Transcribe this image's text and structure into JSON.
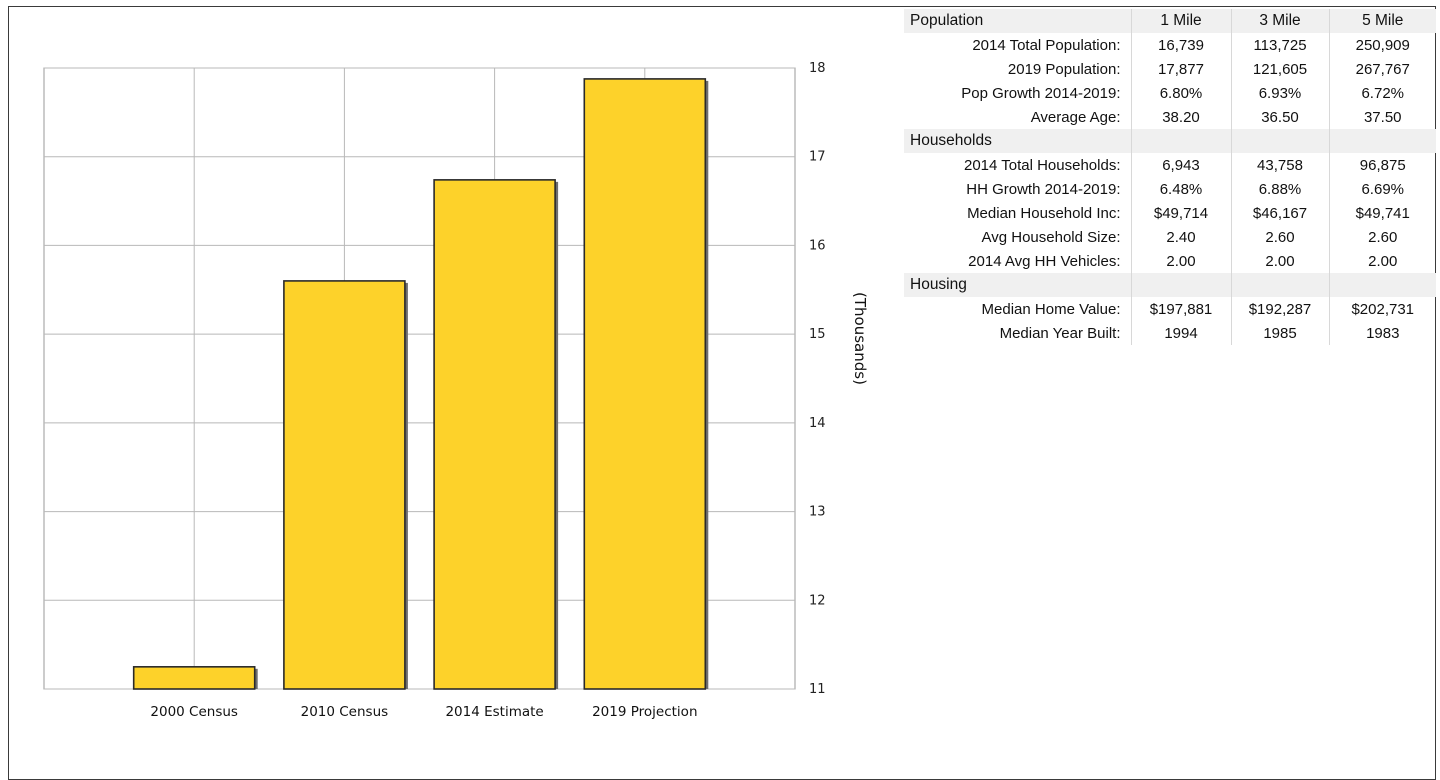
{
  "chart_data": {
    "type": "bar",
    "categories": [
      "2000 Census",
      "2010 Census",
      "2014 Estimate",
      "2019 Projection"
    ],
    "values": [
      11.25,
      15.6,
      16.739,
      17.877
    ],
    "ylabel": "(Thousands)",
    "ylim": [
      11,
      18
    ],
    "yticks": [
      "11",
      "12",
      "13",
      "14",
      "15",
      "16",
      "17",
      "18"
    ],
    "y_axis_side": "right",
    "grid": true,
    "bar_color": "#fdd22a",
    "bar_edge_color": "#2a2a2a"
  },
  "table": {
    "sections": [
      {
        "title": "Population",
        "headers": [
          "1 Mile",
          "3 Mile",
          "5 Mile"
        ],
        "rows": [
          {
            "label": "2014 Total Population:",
            "values": [
              "16,739",
              "113,725",
              "250,909"
            ]
          },
          {
            "label": "2019 Population:",
            "values": [
              "17,877",
              "121,605",
              "267,767"
            ]
          },
          {
            "label": "Pop Growth 2014-2019:",
            "values": [
              "6.80%",
              "6.93%",
              "6.72%"
            ]
          },
          {
            "label": "Average Age:",
            "values": [
              "38.20",
              "36.50",
              "37.50"
            ]
          }
        ]
      },
      {
        "title": "Households",
        "headers": [
          "",
          "",
          ""
        ],
        "rows": [
          {
            "label": "2014 Total Households:",
            "values": [
              "6,943",
              "43,758",
              "96,875"
            ]
          },
          {
            "label": "HH Growth 2014-2019:",
            "values": [
              "6.48%",
              "6.88%",
              "6.69%"
            ]
          },
          {
            "label": "Median Household Inc:",
            "values": [
              "$49,714",
              "$46,167",
              "$49,741"
            ]
          },
          {
            "label": "Avg Household Size:",
            "values": [
              "2.40",
              "2.60",
              "2.60"
            ]
          },
          {
            "label": "2014 Avg HH Vehicles:",
            "values": [
              "2.00",
              "2.00",
              "2.00"
            ]
          }
        ]
      },
      {
        "title": "Housing",
        "headers": [
          "",
          "",
          ""
        ],
        "rows": [
          {
            "label": "Median Home Value:",
            "values": [
              "$197,881",
              "$192,287",
              "$202,731"
            ]
          },
          {
            "label": "Median Year Built:",
            "values": [
              "1994",
              "1985",
              "1983"
            ]
          }
        ]
      }
    ]
  }
}
